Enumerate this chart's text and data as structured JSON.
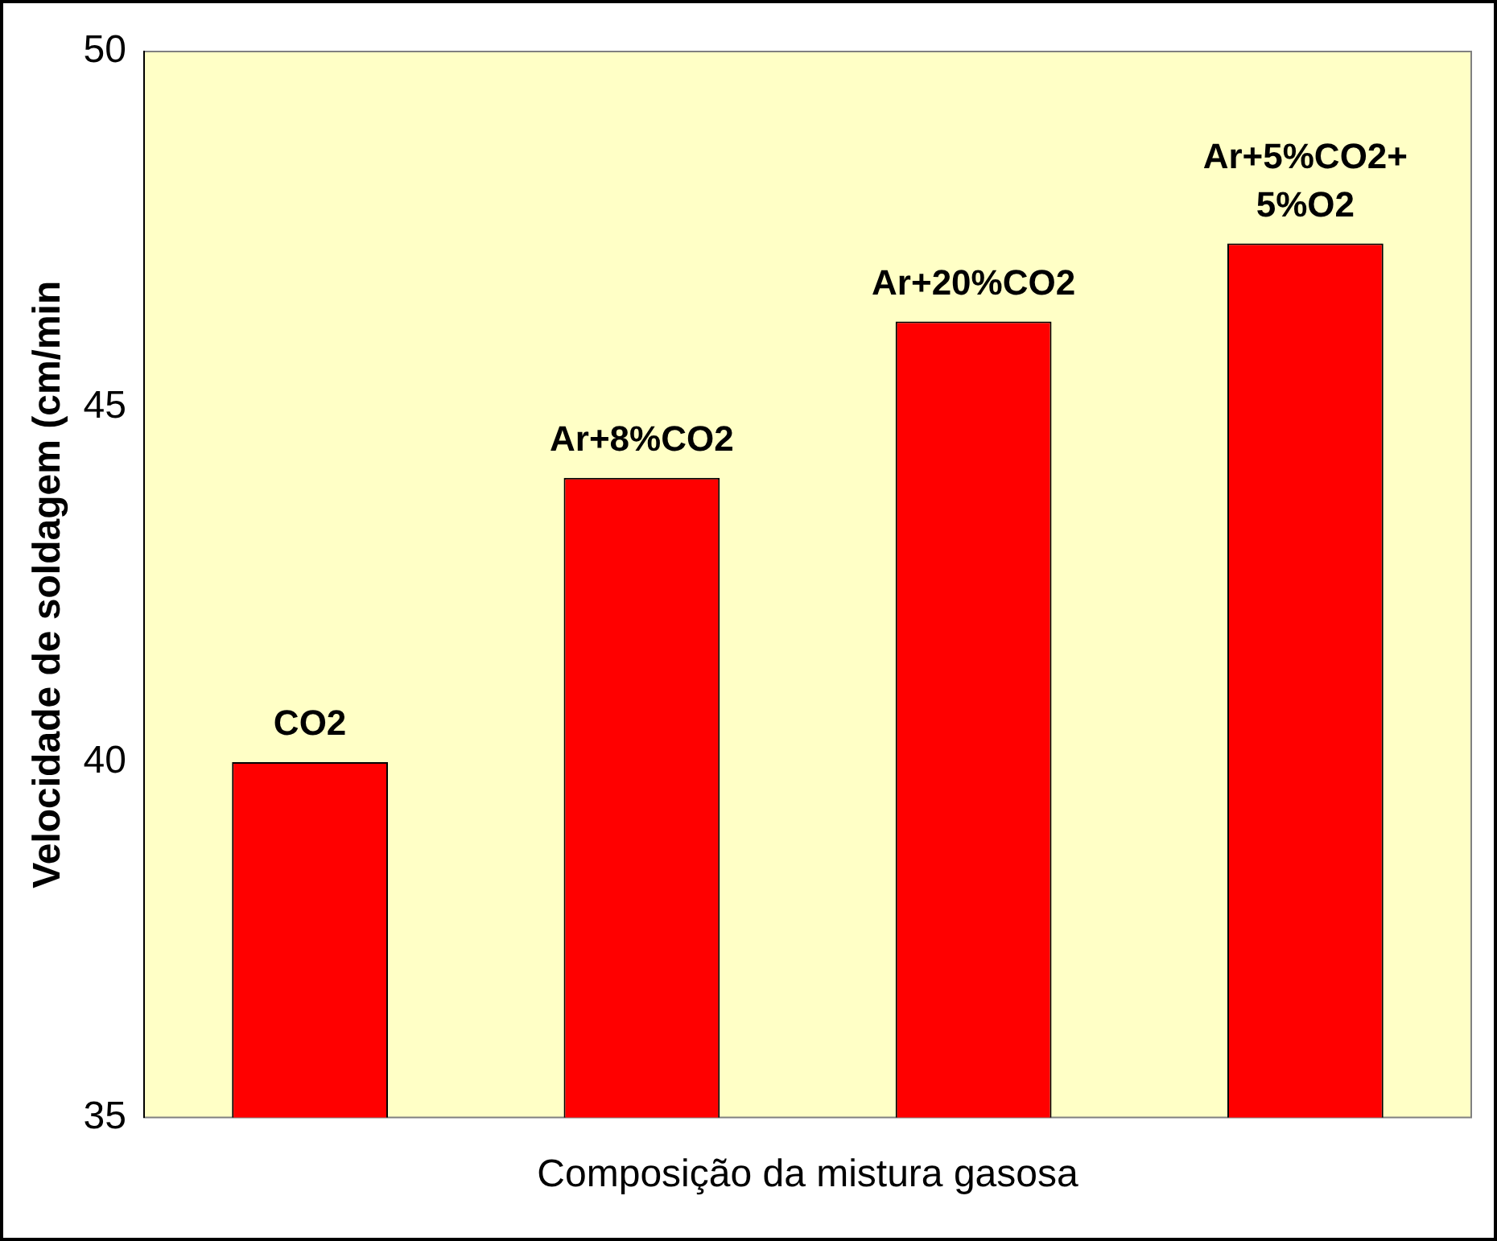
{
  "chart_data": {
    "type": "bar",
    "xlabel": "Composição da mistura gasosa",
    "ylabel": "Velocidade de soldagem (cm/min",
    "categories": [
      "CO2",
      "Ar+8%CO2",
      "Ar+20%CO2",
      "Ar+5%CO2+5%O2"
    ],
    "values": [
      40,
      44,
      46.2,
      47.3
    ],
    "color": "#ff0000",
    "ylim": [
      35,
      50
    ],
    "yticks": [
      35,
      40,
      45,
      50
    ],
    "grid": false,
    "legend": false,
    "tick_labels": "y"
  }
}
